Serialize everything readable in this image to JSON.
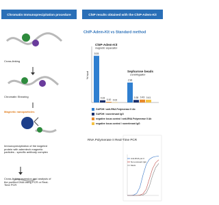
{
  "header": {
    "left": "Chromatin Immunoprecipitation procedure",
    "right": "ChIP results obtained with the ChIP-Adem-Kit"
  },
  "steps": [
    "Cross-linking",
    "Chromatin Shearing",
    "Magnetic nanoparticles",
    "Immunoprecipitation of the targeted protein with ademtech magnetic particles - specific antibody complex",
    "Cross-linking reversion and analysis of the purified DNA using PCR or Real-Time PCR"
  ],
  "chart_data": [
    {
      "type": "bar",
      "title": "ChIP-Adem-Kit vs Standard method",
      "y_label": "% Input",
      "categories": [
        "ChIP-Adem-Kit",
        "Sepharose beads"
      ],
      "category_notes": [
        "magnetic separation",
        "Centrifugation"
      ],
      "ylim": [
        0,
        7.5
      ],
      "series": [
        {
          "name": "GAPDH / anti-RNA Polymerase II Ab",
          "color": "#2f7fd0",
          "values": [
            6.93,
            2.96
          ],
          "value_labels": [
            "6.93",
            "2.96"
          ]
        },
        {
          "name": "GAPDH / nonrelevant IgG",
          "color": "#1b2f6b",
          "values": [
            0.33,
            0.38
          ],
          "value_labels": [
            "0.33",
            "0.38"
          ]
        },
        {
          "name": "negative locus control / anti-RNA Polymerase II Ab",
          "color": "#e8892a",
          "values": [
            0.1,
            0.43
          ],
          "value_labels": [
            "0.10",
            "0.43"
          ]
        },
        {
          "name": "negative locus control / nonrelevant IgG",
          "color": "#f5c242",
          "values": [
            0.02,
            0.41
          ],
          "value_labels": [
            "0.02",
            "0.41"
          ]
        }
      ]
    },
    {
      "type": "line",
      "title": "RNA Polymerase II Real-Time PCR",
      "x": [
        20,
        22,
        24,
        26,
        28,
        30,
        32,
        34,
        36,
        38,
        40
      ],
      "xlim": [
        20,
        40
      ],
      "ylim": [
        0,
        1
      ],
      "series": [
        {
          "name": "Anti-RNA pol II",
          "color": "#3a78c8",
          "values": [
            0,
            0,
            0.01,
            0.05,
            0.2,
            0.5,
            0.75,
            0.88,
            0.93,
            0.95,
            0.96
          ]
        },
        {
          "name": "Non-relevant IgG",
          "color": "#c0504d",
          "values": [
            0,
            0,
            0,
            0,
            0.01,
            0.04,
            0.15,
            0.4,
            0.65,
            0.8,
            0.87
          ]
        },
        {
          "name": "Mock",
          "color": "#7f7f7f",
          "values": [
            0,
            0,
            0,
            0,
            0,
            0.01,
            0.06,
            0.22,
            0.48,
            0.68,
            0.78
          ]
        }
      ]
    }
  ]
}
